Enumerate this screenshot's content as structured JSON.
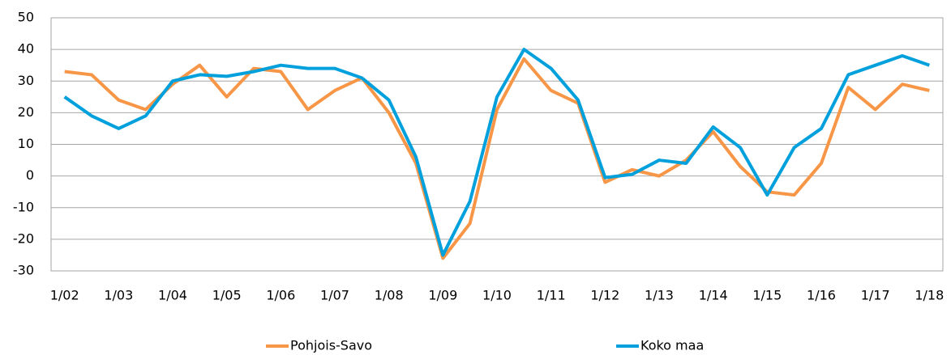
{
  "chart_data": {
    "type": "line",
    "categories": [
      "1/02",
      null,
      "1/03",
      null,
      "1/04",
      null,
      "1/05",
      null,
      "1/06",
      null,
      "1/07",
      null,
      "1/08",
      null,
      "1/09",
      null,
      "1/10",
      null,
      "1/11",
      null,
      "1/12",
      null,
      "1/13",
      null,
      "1/14",
      null,
      "1/15",
      null,
      "1/16",
      null,
      "1/17",
      null,
      "1/18"
    ],
    "series": [
      {
        "name": "Pohjois-Savo",
        "color": "#f79646",
        "values": [
          33,
          32,
          24,
          21,
          29,
          35,
          25,
          34,
          33,
          21,
          27,
          31,
          20,
          4,
          -26,
          -15,
          21,
          37,
          27,
          23,
          -2,
          2,
          0,
          5,
          14,
          3,
          -5,
          -6,
          4,
          28,
          21,
          29,
          27
        ]
      },
      {
        "name": "Koko maa",
        "color": "#00a0dc",
        "values": [
          25,
          19,
          15,
          19,
          30,
          32,
          31.5,
          33,
          35,
          34,
          34,
          31,
          24,
          6,
          -25,
          -8,
          25,
          40,
          34,
          24,
          -0.5,
          0.5,
          5,
          4,
          15.5,
          9,
          -6,
          9,
          15,
          32,
          35,
          38,
          35
        ]
      }
    ],
    "ylim": [
      -30,
      50
    ],
    "yticks": [
      -30,
      -20,
      -10,
      0,
      10,
      20,
      30,
      40,
      50
    ],
    "grid": true,
    "legend": "bottom"
  }
}
